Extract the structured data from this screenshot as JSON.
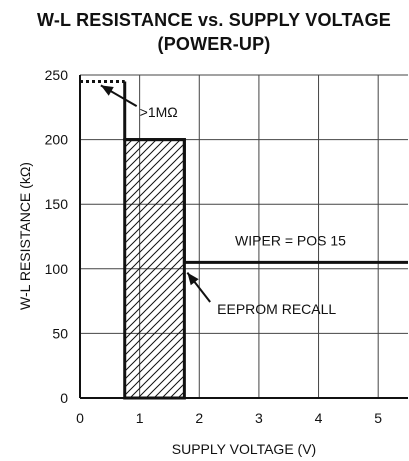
{
  "chart_data": {
    "type": "line",
    "title": "W-L RESISTANCE vs. SUPPLY VOLTAGE",
    "subtitle": "(POWER-UP)",
    "xlabel": "SUPPLY VOLTAGE (V)",
    "ylabel": "W-L RESISTANCE (kΩ)",
    "xlim": [
      0,
      5.5
    ],
    "ylim": [
      0,
      250
    ],
    "x_ticks": [
      0,
      1,
      2,
      3,
      4,
      5
    ],
    "y_ticks": [
      0,
      50,
      100,
      150,
      200,
      250
    ],
    "x_tick_labels": [
      "0",
      "1",
      "2",
      "3",
      "4",
      "5"
    ],
    "y_tick_labels": [
      "0",
      "50",
      "100",
      "150",
      "200",
      "250"
    ],
    "grid": true,
    "series": [
      {
        "x": [
          0,
          0.75,
          0.75,
          1.75,
          1.75,
          5.5
        ],
        "y": [
          245,
          245,
          200,
          200,
          105,
          105
        ],
        "style": "solid-dotted-initial"
      }
    ],
    "shaded_regions": [
      {
        "x_range": [
          0.75,
          1.75
        ],
        "y_range": [
          0,
          200
        ],
        "style": "hatched"
      }
    ],
    "annotations": [
      {
        "text": ">1MΩ",
        "x": 0.9,
        "y": 222,
        "arrow_to": [
          0.35,
          242
        ]
      },
      {
        "text": "WIPER = POS 15",
        "x": 2.6,
        "y": 118
      },
      {
        "text": "EEPROM RECALL",
        "x": 2.3,
        "y": 65,
        "arrow_to": [
          1.8,
          97
        ]
      }
    ],
    "legend": "none",
    "colors": {
      "line": "#111111",
      "grid": "#444444",
      "hatch": "#111111"
    }
  }
}
